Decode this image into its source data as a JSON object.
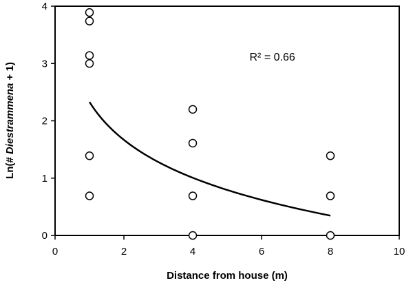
{
  "chart_data": {
    "type": "scatter",
    "title": "",
    "xlabel": "Distance from house (m)",
    "ylabel": {
      "prefix": "Ln(# ",
      "italic": "Diestrammena",
      "suffix": " + 1)"
    },
    "xlim": [
      0,
      10
    ],
    "ylim": [
      0,
      4
    ],
    "x_ticks": [
      0,
      2,
      4,
      6,
      8,
      10
    ],
    "y_ticks": [
      0,
      1,
      2,
      3,
      4
    ],
    "grid": false,
    "legend": "none",
    "points": [
      {
        "x": 1,
        "y": 3.89
      },
      {
        "x": 1,
        "y": 3.74
      },
      {
        "x": 1,
        "y": 3.14
      },
      {
        "x": 1,
        "y": 3.0
      },
      {
        "x": 1,
        "y": 1.39
      },
      {
        "x": 1,
        "y": 0.69
      },
      {
        "x": 4,
        "y": 2.2
      },
      {
        "x": 4,
        "y": 1.61
      },
      {
        "x": 4,
        "y": 0.69
      },
      {
        "x": 4,
        "y": 0.0
      },
      {
        "x": 8,
        "y": 1.39
      },
      {
        "x": 8,
        "y": 0.69
      },
      {
        "x": 8,
        "y": 0.0
      }
    ],
    "trend": {
      "type": "logarithmic",
      "x_range": [
        1,
        8
      ],
      "samples": [
        {
          "x": 1,
          "y": 2.33
        },
        {
          "x": 4,
          "y": 1.0
        },
        {
          "x": 8,
          "y": 0.35
        }
      ]
    },
    "annotations": [
      {
        "text": "R² = 0.66",
        "x": 5.65,
        "y": 3.05
      }
    ],
    "colors": {
      "marker_stroke": "#000000",
      "marker_fill": "#ffffff",
      "trend": "#000000",
      "frame": "#000000"
    }
  }
}
